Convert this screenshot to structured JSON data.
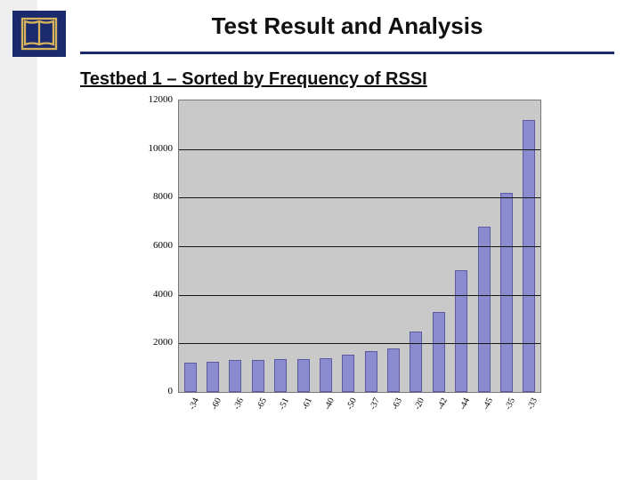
{
  "header": {
    "title": "Test Result and Analysis",
    "subtitle": "Testbed 1 – Sorted by Frequency of RSSI",
    "rule_color": "#1a2a6c",
    "logo_bg": "#1a2a6c",
    "logo_stroke": "#d6b25a"
  },
  "chart": {
    "type": "bar",
    "background_color": "#c9c9c9",
    "grid_color": "#151515",
    "bar_fill": "#8b8bcf",
    "bar_border": "#5a5aa0",
    "label_font": "Times New Roman",
    "label_fontsize": 11,
    "ylim": [
      0,
      12000
    ],
    "ytick_step": 2000,
    "yticks": [
      0,
      2000,
      4000,
      6000,
      8000,
      10000,
      12000
    ],
    "categories": [
      "-34",
      "-60",
      "-36",
      "-65",
      "-51",
      "-61",
      "-40",
      "-50",
      "-37",
      "-63",
      "-20",
      "-42",
      "-44",
      "-45",
      "-35",
      "-33"
    ],
    "values": [
      1200,
      1250,
      1300,
      1300,
      1350,
      1350,
      1400,
      1550,
      1700,
      1800,
      2500,
      3300,
      5000,
      6800,
      8200,
      11200
    ],
    "bar_width_ratio": 0.55
  }
}
